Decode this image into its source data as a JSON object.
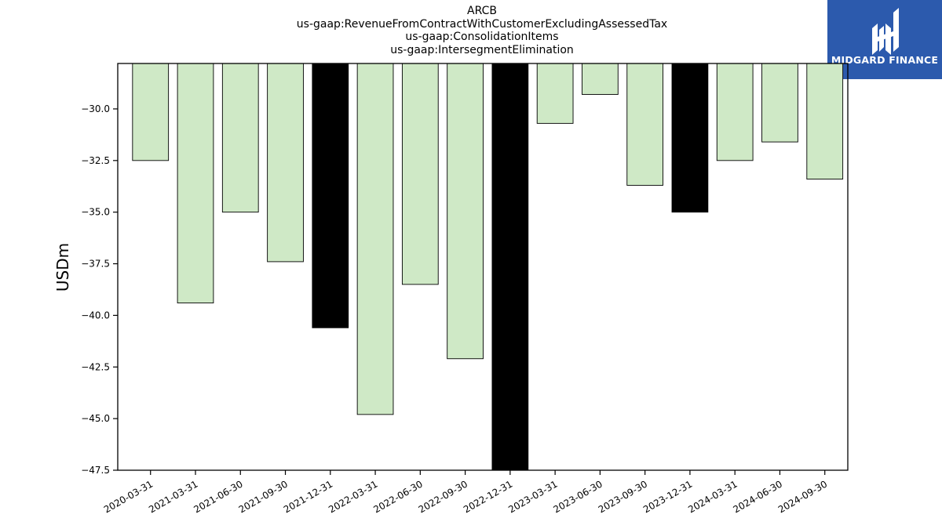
{
  "chart_data": {
    "type": "bar",
    "title_lines": [
      "ARCB",
      "us-gaap:RevenueFromContractWithCustomerExcludingAssessedTax",
      "us-gaap:ConsolidationItems",
      "us-gaap:IntersegmentElimination"
    ],
    "ylabel": "USDm",
    "xlabel": "",
    "categories": [
      "2020-03-31",
      "2021-03-31",
      "2021-06-30",
      "2021-09-30",
      "2021-12-31",
      "2022-03-31",
      "2022-06-30",
      "2022-09-30",
      "2022-12-31",
      "2023-03-31",
      "2023-06-30",
      "2023-09-30",
      "2023-12-31",
      "2024-03-31",
      "2024-06-30",
      "2024-09-30"
    ],
    "values": [
      -32.5,
      -39.4,
      -35.0,
      -37.4,
      -40.6,
      -44.8,
      -38.5,
      -42.1,
      -48.0,
      -30.7,
      -29.3,
      -33.7,
      -35.0,
      -32.5,
      -31.6,
      -33.4
    ],
    "highlight": [
      false,
      false,
      false,
      false,
      true,
      false,
      false,
      false,
      true,
      false,
      false,
      false,
      true,
      false,
      false,
      false
    ],
    "ylim": [
      -47.5,
      -27.8
    ],
    "yticks": [
      -30.0,
      -32.5,
      -35.0,
      -37.5,
      -40.0,
      -42.5,
      -45.0,
      -47.5
    ],
    "colors": {
      "bar": "#cfe9c6",
      "highlight": "#000000",
      "edge": "#000000"
    },
    "grid": false,
    "legend": "none"
  },
  "logo": {
    "text": "MIDGARD FINANCE",
    "color": "#2c5aad"
  }
}
